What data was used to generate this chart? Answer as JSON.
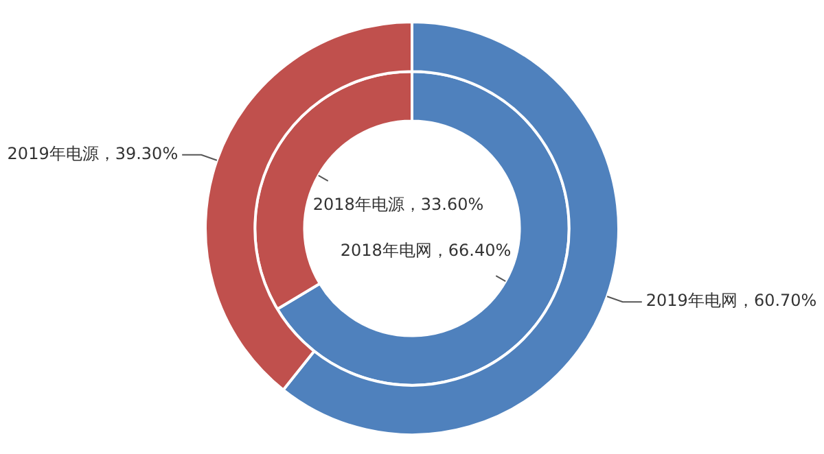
{
  "chart_data": {
    "type": "donut",
    "categories": [
      "电网",
      "电源"
    ],
    "legend": false,
    "series": [
      {
        "name": "2019年",
        "values": [
          60.7,
          39.3
        ],
        "colors": [
          "#4f81bd",
          "#c0504d"
        ],
        "value_labels": [
          "，60.70%",
          "，39.30%"
        ]
      },
      {
        "name": "2018年",
        "values": [
          66.4,
          33.6
        ],
        "colors": [
          "#4f81bd",
          "#c0504d"
        ],
        "value_labels": [
          "，66.40%",
          "，33.60%"
        ]
      }
    ]
  }
}
